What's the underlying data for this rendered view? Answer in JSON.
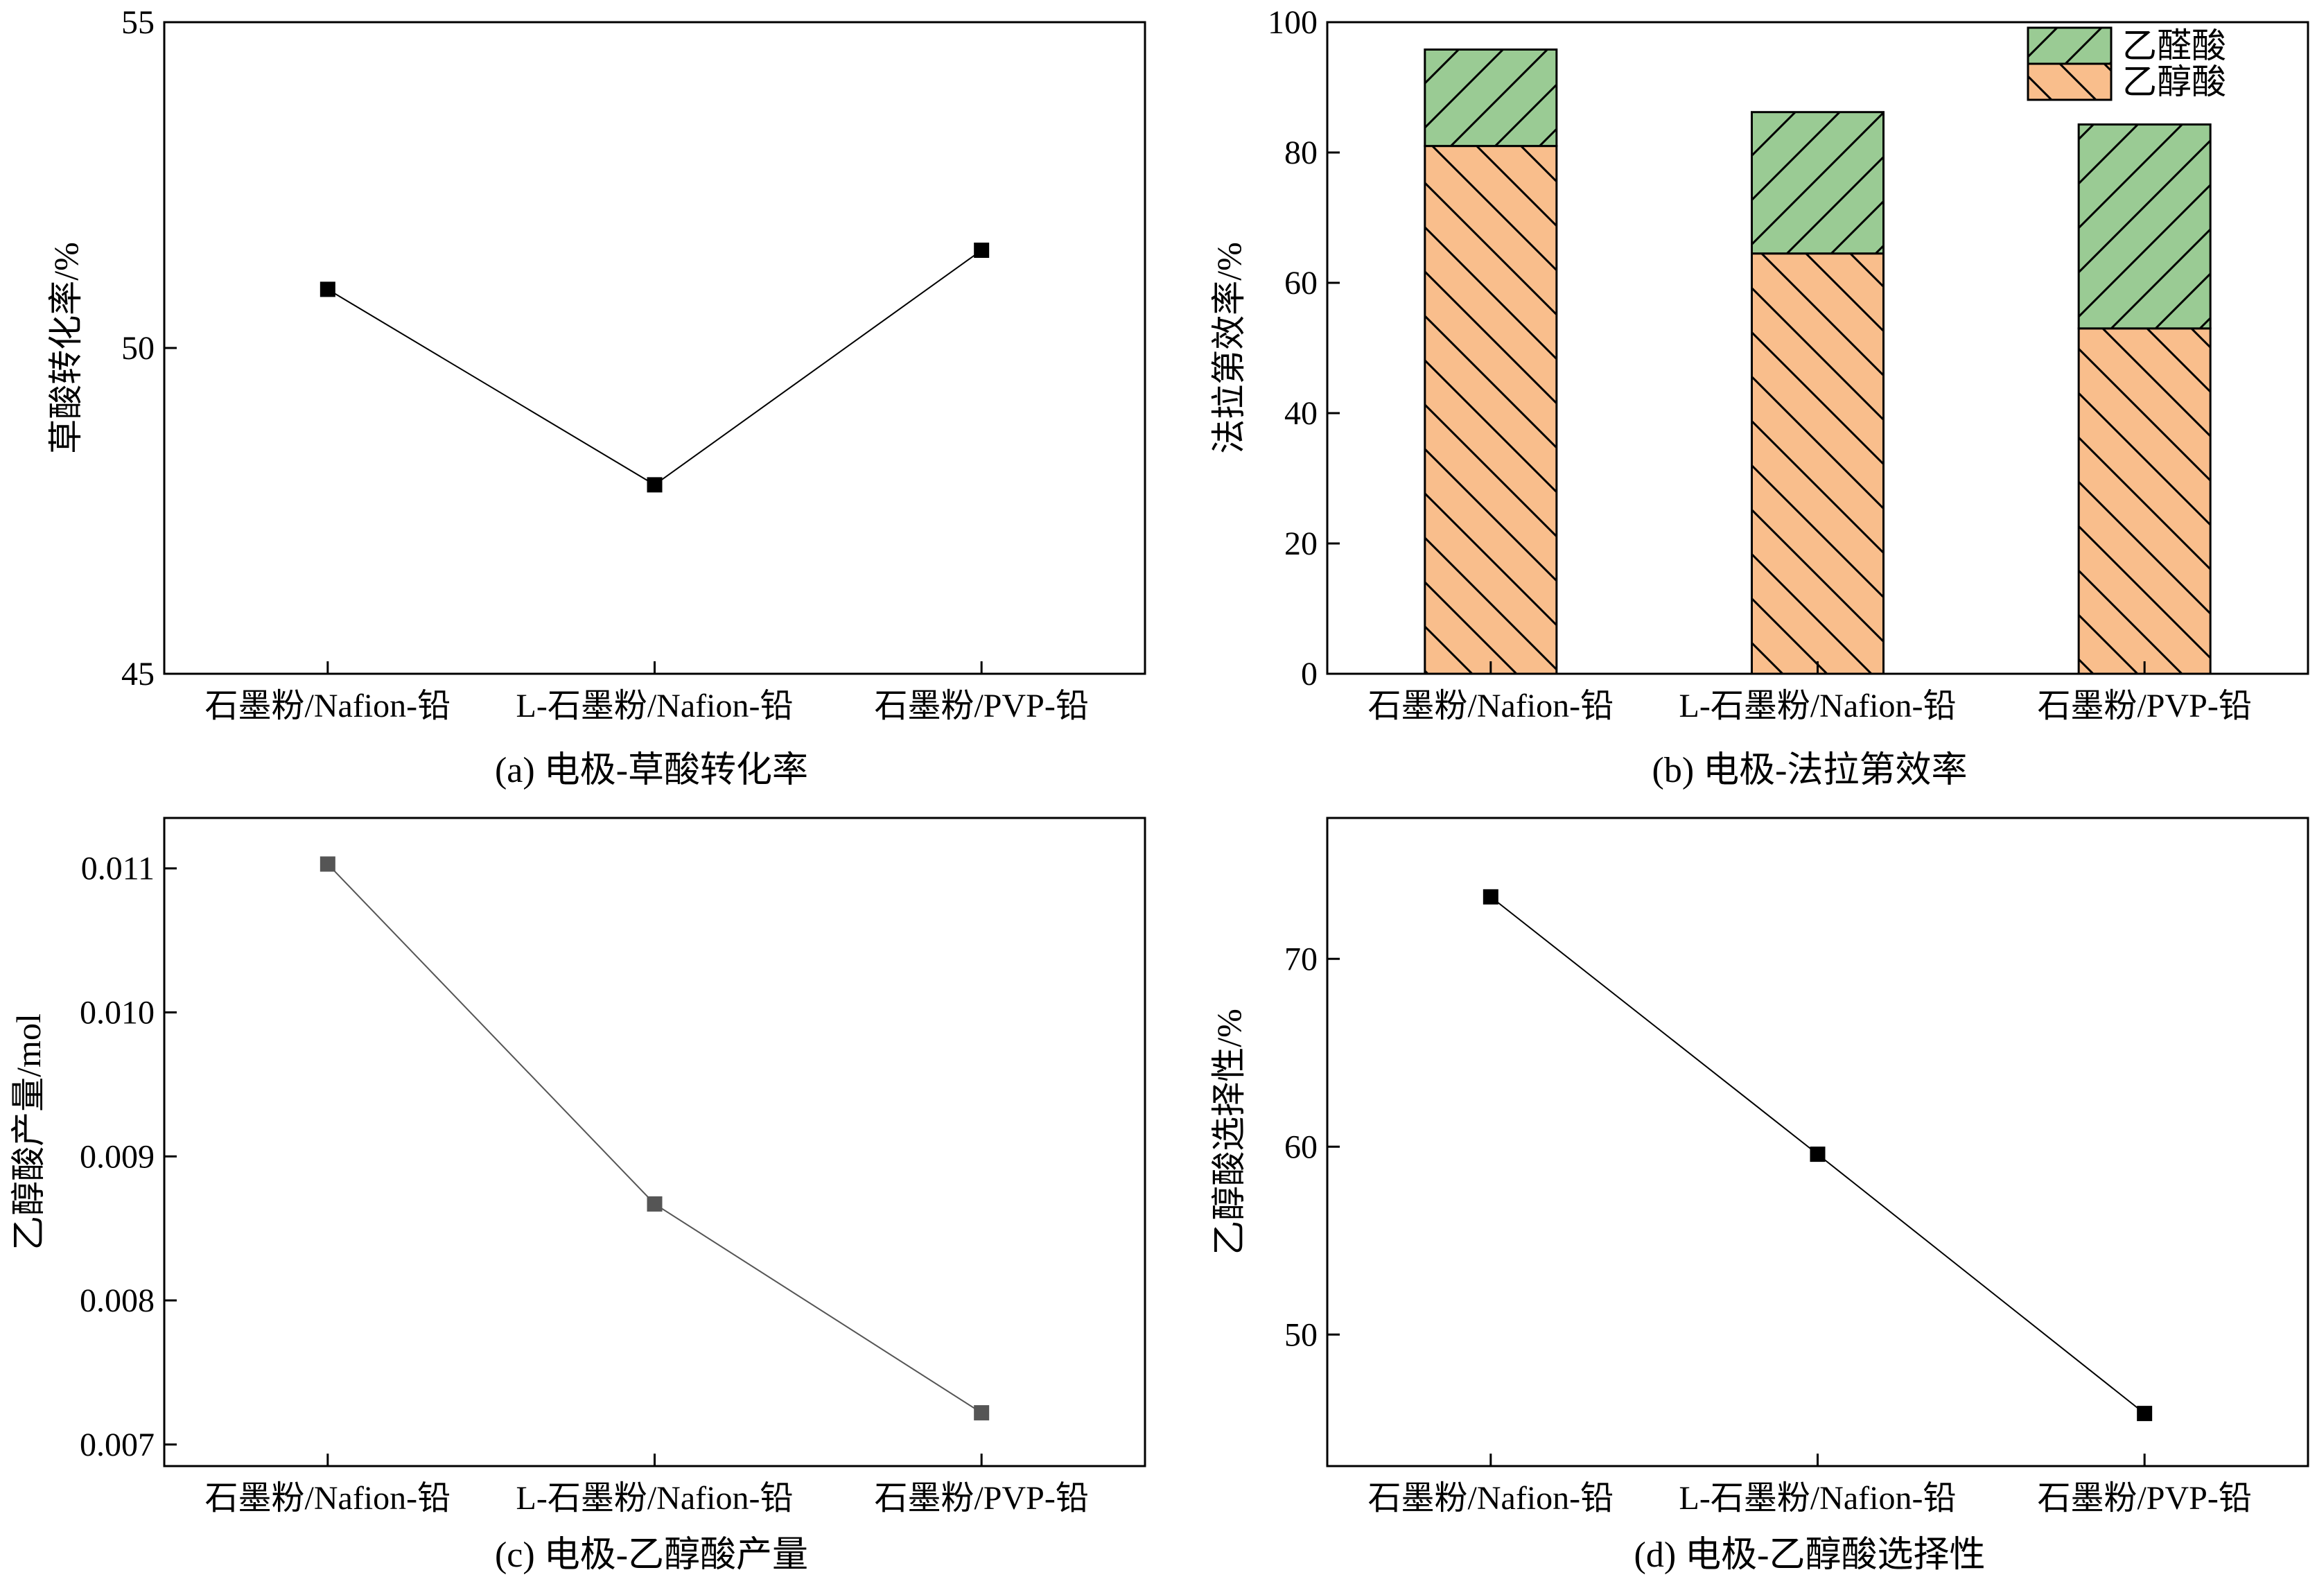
{
  "chart_data": [
    {
      "id": "a",
      "type": "line",
      "caption": "(a) 电极-草酸转化率",
      "ylabel": "草酸转化率/%",
      "xlabel": "",
      "categories": [
        "石墨粉/Nafion-铅",
        "L-石墨粉/Nafion-铅",
        "石墨粉/PVP-铅"
      ],
      "series": [
        {
          "values": [
            50.9,
            47.9,
            51.5
          ],
          "color": "#000000"
        }
      ],
      "ylim": [
        45,
        55
      ],
      "yticks": [
        45,
        50,
        55
      ],
      "yticklabels": [
        "45",
        "50",
        "55"
      ]
    },
    {
      "id": "b",
      "type": "bar",
      "stacked": true,
      "caption": "(b) 电极-法拉第效率",
      "ylabel": "法拉第效率/%",
      "xlabel": "",
      "categories": [
        "石墨粉/Nafion-铅",
        "L-石墨粉/Nafion-铅",
        "石墨粉/PVP-铅"
      ],
      "series": [
        {
          "name": "乙醇酸",
          "values": [
            81.0,
            64.5,
            53.0
          ],
          "color": "#F9BE8C",
          "hatch": "backslash"
        },
        {
          "name": "乙醛酸",
          "values": [
            14.8,
            21.7,
            31.3
          ],
          "color": "#9ACB94",
          "hatch": "slash"
        }
      ],
      "legend_order": [
        1,
        0
      ],
      "legend_position": "top-right",
      "ylim": [
        0,
        100
      ],
      "yticks": [
        0,
        20,
        40,
        60,
        80,
        100
      ],
      "yticklabels": [
        "0",
        "20",
        "40",
        "60",
        "80",
        "100"
      ]
    },
    {
      "id": "c",
      "type": "line",
      "caption": "(c) 电极-乙醇酸产量",
      "ylabel": "乙醇酸产量/mol",
      "xlabel": "",
      "categories": [
        "石墨粉/Nafion-铅",
        "L-石墨粉/Nafion-铅",
        "石墨粉/PVP-铅"
      ],
      "series": [
        {
          "values": [
            0.01103,
            0.00867,
            0.00722
          ],
          "color": "#555555"
        }
      ],
      "ylim": [
        0.00685,
        0.01135
      ],
      "yticks": [
        0.007,
        0.008,
        0.009,
        0.01,
        0.011
      ],
      "yticklabels": [
        "0.007",
        "0.008",
        "0.009",
        "0.010",
        "0.011"
      ]
    },
    {
      "id": "d",
      "type": "line",
      "caption": "(d) 电极-乙醇酸选择性",
      "ylabel": "乙醇酸选择性/%",
      "xlabel": "",
      "categories": [
        "石墨粉/Nafion-铅",
        "L-石墨粉/Nafion-铅",
        "石墨粉/PVP-铅"
      ],
      "series": [
        {
          "values": [
            73.3,
            59.6,
            45.8
          ],
          "color": "#000000"
        }
      ],
      "ylim": [
        43,
        77.5
      ],
      "yticks": [
        50,
        60,
        70
      ],
      "yticklabels": [
        "50",
        "60",
        "70"
      ]
    }
  ]
}
